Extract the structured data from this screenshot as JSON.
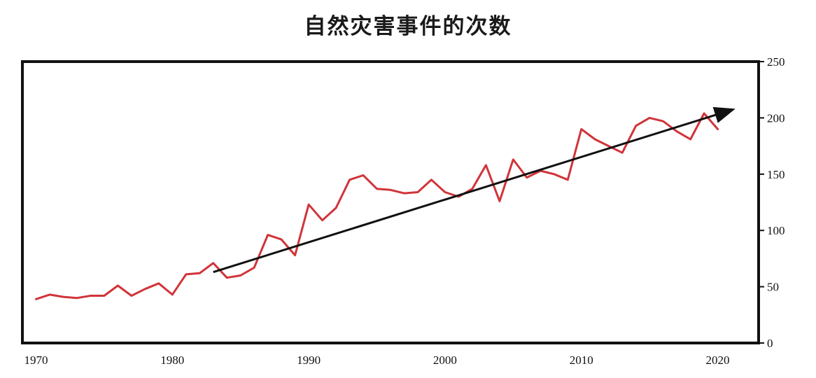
{
  "chart_data": {
    "type": "line",
    "title": "自然灾害事件的次数",
    "xlabel": "",
    "ylabel": "",
    "xlim": [
      1969,
      2023
    ],
    "ylim": [
      0,
      250
    ],
    "x_ticks": [
      1970,
      1980,
      1990,
      2000,
      2010,
      2020
    ],
    "y_ticks": [
      0,
      50,
      100,
      150,
      200,
      250
    ],
    "y_axis_side": "right",
    "grid": false,
    "legend": "none",
    "series": [
      {
        "color": "#d0343a",
        "x": [
          1970,
          1971,
          1972,
          1973,
          1974,
          1975,
          1976,
          1977,
          1978,
          1979,
          1980,
          1981,
          1982,
          1983,
          1984,
          1985,
          1986,
          1987,
          1988,
          1989,
          1990,
          1991,
          1992,
          1993,
          1994,
          1995,
          1996,
          1997,
          1998,
          1999,
          2000,
          2001,
          2002,
          2003,
          2004,
          2005,
          2006,
          2007,
          2008,
          2009,
          2010,
          2011,
          2012,
          2013,
          2014,
          2015,
          2016,
          2017,
          2018,
          2019,
          2020
        ],
        "y": [
          39,
          43,
          41,
          40,
          42,
          42,
          51,
          42,
          48,
          53,
          43,
          61,
          62,
          71,
          58,
          60,
          67,
          96,
          92,
          78,
          123,
          109,
          120,
          145,
          149,
          137,
          136,
          133,
          134,
          145,
          134,
          130,
          137,
          158,
          126,
          163,
          147,
          153,
          150,
          145,
          190,
          181,
          175,
          169,
          193,
          200,
          197,
          188,
          181,
          204,
          190
        ]
      }
    ],
    "annotations": [
      {
        "type": "trend-arrow",
        "color": "#111111",
        "from": [
          1983,
          63
        ],
        "to": [
          2021,
          207
        ]
      }
    ]
  }
}
